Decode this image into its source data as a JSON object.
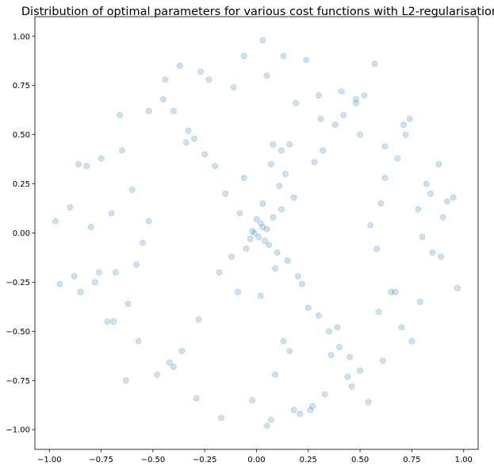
{
  "chart_data": {
    "type": "scatter",
    "title": "Distribution of optimal parameters for various cost functions with L2-regularisation",
    "xlabel": "",
    "ylabel": "",
    "xlim": [
      -1.07,
      1.07
    ],
    "ylim": [
      -1.1,
      1.1
    ],
    "x_ticks": [
      -1.0,
      -0.75,
      -0.5,
      -0.25,
      0.0,
      0.25,
      0.5,
      0.75,
      1.0
    ],
    "x_tick_labels": [
      "−1.00",
      "−0.75",
      "−0.50",
      "−0.25",
      "0.00",
      "0.25",
      "0.50",
      "0.75",
      "1.00"
    ],
    "y_ticks": [
      1.0,
      0.75,
      0.5,
      0.25,
      0.0,
      -0.25,
      -0.5,
      -0.75,
      -1.0
    ],
    "y_tick_labels": [
      "1.00",
      "0.75",
      "0.50",
      "0.25",
      "0.00",
      "−0.25",
      "−0.50",
      "−0.75",
      "−1.00"
    ],
    "grid": false,
    "point_color": "#1f77b4",
    "point_alpha": 0.22,
    "series": [
      {
        "x": [
          -0.02,
          0.01,
          0.03,
          -0.01,
          0.02,
          0.04,
          -0.03,
          0.05,
          0.0,
          0.06,
          0.08,
          -0.05,
          0.1,
          0.12,
          -0.08,
          0.15,
          0.03,
          -0.12,
          0.18,
          0.09,
          -0.15,
          0.2,
          -0.18,
          0.11,
          0.22,
          -0.06,
          0.14,
          0.02,
          -0.09,
          0.07,
          -0.2,
          0.25,
          0.28,
          -0.25,
          0.3,
          -0.28,
          0.16,
          0.32,
          -0.3,
          0.35,
          0.13,
          -0.33,
          0.38,
          0.4,
          -0.36,
          0.42,
          -0.4,
          0.45,
          -0.42,
          0.48,
          -0.45,
          0.5,
          -0.48,
          0.52,
          0.55,
          -0.52,
          0.58,
          -0.55,
          0.6,
          -0.58,
          0.62,
          -0.6,
          0.65,
          -0.62,
          0.68,
          -0.65,
          0.7,
          -0.68,
          0.72,
          -0.7,
          0.75,
          -0.72,
          0.78,
          -0.75,
          0.8,
          -0.78,
          0.82,
          -0.8,
          0.85,
          -0.82,
          0.88,
          -0.85,
          0.9,
          -0.88,
          0.92,
          -0.9,
          0.95,
          -0.95,
          0.97,
          -0.97,
          0.05,
          0.07,
          0.03,
          -0.02,
          0.24,
          0.26,
          0.57,
          -0.44,
          0.71,
          -0.63,
          0.33,
          -0.37,
          0.46,
          0.61,
          -0.69,
          0.84,
          -0.86,
          0.3,
          0.09,
          -0.11,
          0.16,
          0.41,
          0.36,
          -0.23,
          0.19,
          -0.4,
          0.62,
          0.79,
          -0.57,
          0.44,
          -0.27,
          0.59,
          0.74,
          -0.66,
          0.27,
          0.54,
          -0.52,
          0.67,
          -0.76,
          0.89,
          0.13,
          -0.29,
          0.21,
          0.48,
          0.5,
          -0.34,
          0.39,
          0.05,
          0.31,
          -0.17,
          0.08,
          -0.06,
          0.18,
          0.12
        ],
        "y": [
          0.01,
          -0.02,
          0.03,
          0.0,
          0.05,
          -0.04,
          -0.03,
          0.02,
          0.07,
          -0.06,
          0.08,
          -0.08,
          -0.1,
          0.12,
          0.1,
          -0.14,
          0.15,
          -0.12,
          0.18,
          -0.18,
          0.2,
          -0.22,
          -0.2,
          0.24,
          -0.26,
          0.28,
          0.3,
          -0.32,
          -0.3,
          0.35,
          0.34,
          -0.38,
          0.36,
          0.4,
          -0.42,
          -0.44,
          0.45,
          0.42,
          0.48,
          -0.5,
          -0.55,
          0.52,
          0.55,
          -0.58,
          -0.6,
          0.6,
          0.62,
          -0.63,
          -0.66,
          0.66,
          0.68,
          -0.7,
          -0.72,
          0.7,
          0.04,
          0.06,
          -0.08,
          -0.05,
          0.15,
          -0.16,
          0.28,
          0.22,
          -0.3,
          -0.36,
          0.38,
          0.42,
          -0.48,
          -0.2,
          0.5,
          0.1,
          -0.55,
          -0.45,
          0.12,
          0.38,
          -0.02,
          -0.25,
          0.25,
          0.03,
          -0.1,
          0.34,
          0.35,
          -0.3,
          0.08,
          -0.22,
          0.16,
          0.13,
          0.18,
          -0.26,
          -0.28,
          0.06,
          0.8,
          -0.95,
          0.98,
          -0.85,
          0.88,
          -0.9,
          0.86,
          0.78,
          0.55,
          -0.75,
          -0.82,
          0.85,
          -0.78,
          -0.65,
          -0.45,
          0.2,
          0.35,
          0.7,
          -0.72,
          0.74,
          -0.6,
          0.72,
          -0.62,
          0.78,
          0.66,
          -0.68,
          0.44,
          -0.35,
          -0.55,
          -0.73,
          0.82,
          -0.4,
          0.58,
          0.6,
          -0.88,
          -0.86,
          0.62,
          -0.3,
          -0.2,
          -0.12,
          0.9,
          -0.84,
          -0.92,
          0.68,
          0.5,
          0.46,
          -0.48,
          -0.98,
          0.58,
          -0.94,
          0.45,
          0.9,
          -0.9,
          0.42
        ]
      }
    ]
  }
}
